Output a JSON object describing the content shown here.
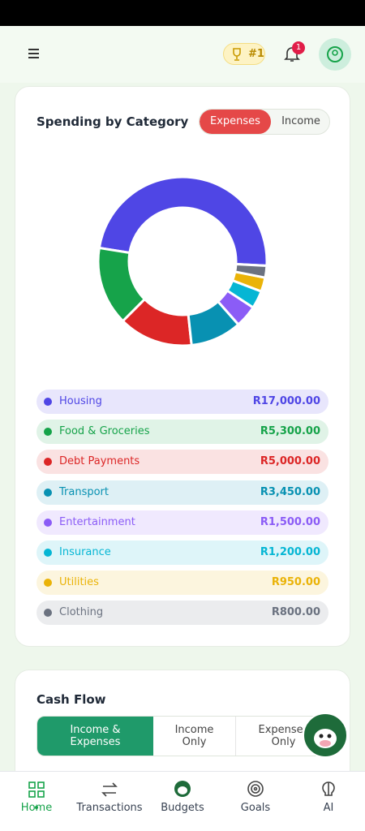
{
  "header": {
    "rank": "#1",
    "notifications": "1"
  },
  "chart_data": {
    "type": "donut",
    "title": "Spending by Category",
    "toggle": [
      "Expenses",
      "Income"
    ],
    "categories": [
      "Housing",
      "Food & Groceries",
      "Debt Payments",
      "Transport",
      "Entertainment",
      "Insurance",
      "Utilities",
      "Clothing"
    ],
    "values": [
      17000,
      5300,
      5000,
      3450,
      1500,
      1200,
      950,
      800
    ],
    "value_labels": [
      "R17,000.00",
      "R5,300.00",
      "R5,000.00",
      "R3,450.00",
      "R1,500.00",
      "R1,200.00",
      "R950.00",
      "R800.00"
    ],
    "colors": [
      "#4f46e5",
      "#16a34a",
      "#dc2626",
      "#0891b2",
      "#8b5cf6",
      "#06b6d4",
      "#eab308",
      "#6b7280"
    ]
  },
  "cash_flow": {
    "title": "Cash Flow",
    "tabs": [
      "Income & Expenses",
      "Income Only",
      "Expenses Only"
    ]
  },
  "nav": [
    "Home",
    "Transactions",
    "Budgets",
    "Goals",
    "AI"
  ]
}
